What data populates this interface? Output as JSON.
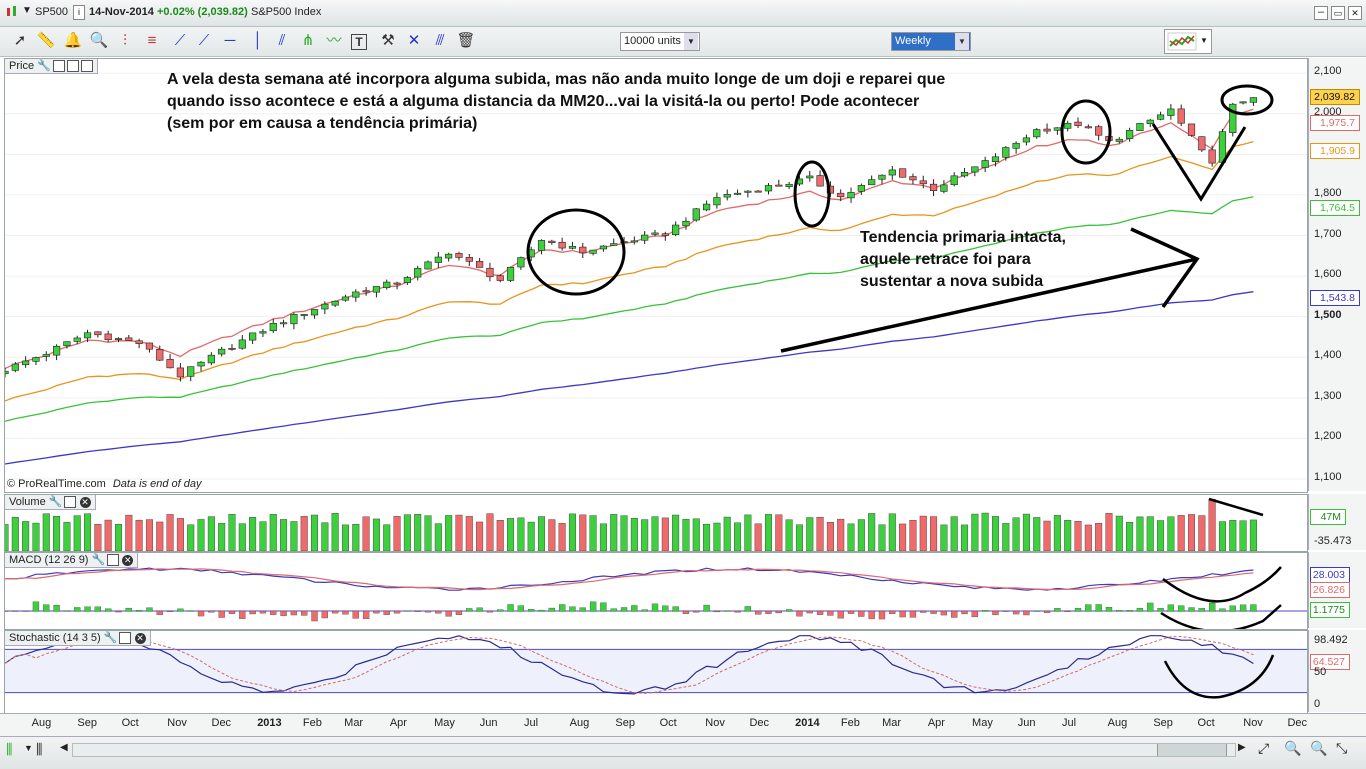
{
  "header": {
    "symbol": "SP500",
    "date": "14-Nov-2014",
    "change": "+0.02% (2,039.82)",
    "name": "S&P500 Index",
    "units": "10000 units",
    "timeframe": "Weekly"
  },
  "price_panel": {
    "title": "Price",
    "footer_source": "© ProRealTime.com",
    "footer_note": "Data is end of day",
    "y_ticks": [
      "2,100",
      "2,000",
      "1,900",
      "1,800",
      "1,700",
      "1,600",
      "1,500",
      "1,400",
      "1,300",
      "1,200",
      "1,100"
    ],
    "tags": [
      {
        "label": "2,039.82",
        "color": "#c08a00",
        "bg": "#ffd24d"
      },
      {
        "label": "1,975.7",
        "color": "#e06a6a",
        "bg": "#ffffff"
      },
      {
        "label": "1,905.9",
        "color": "#e8941e",
        "bg": "#ffffff"
      },
      {
        "label": "1,764.5",
        "color": "#39c239",
        "bg": "#ffffff"
      },
      {
        "label": "1,543.8",
        "color": "#3a3ac8",
        "bg": "#ffffff"
      }
    ]
  },
  "annotations": {
    "top_note": "A vela desta semana até incorpora alguma subida, mas não anda muito longe de um doji e reparei que quando isso acontece e está a alguma distancia da MM20...vai la visitá-la ou perto! Pode acontecer (sem por em causa a tendência primária)",
    "trend_note": "Tendencia primaria intacta, aquele retrace foi para sustentar a nova subida"
  },
  "volume_panel": {
    "title": "Volume",
    "labels": [
      "47M",
      "-35.473"
    ]
  },
  "macd_panel": {
    "title": "MACD (12 26 9)",
    "labels": [
      "28.003",
      "26.826",
      "1.1775"
    ]
  },
  "stoch_panel": {
    "title": "Stochastic (14 3 5)",
    "labels": [
      "98.492",
      "64.527",
      "50",
      "0"
    ]
  },
  "x_axis": [
    {
      "t": "Aug",
      "bold": false
    },
    {
      "t": "Sep",
      "bold": false
    },
    {
      "t": "Oct",
      "bold": false
    },
    {
      "t": "Nov",
      "bold": false
    },
    {
      "t": "Dec",
      "bold": false
    },
    {
      "t": "2013",
      "bold": true
    },
    {
      "t": "Feb",
      "bold": false
    },
    {
      "t": "Mar",
      "bold": false
    },
    {
      "t": "Apr",
      "bold": false
    },
    {
      "t": "May",
      "bold": false
    },
    {
      "t": "Jun",
      "bold": false
    },
    {
      "t": "Jul",
      "bold": false
    },
    {
      "t": "Aug",
      "bold": false
    },
    {
      "t": "Sep",
      "bold": false
    },
    {
      "t": "Oct",
      "bold": false
    },
    {
      "t": "Nov",
      "bold": false
    },
    {
      "t": "Dec",
      "bold": false
    },
    {
      "t": "2014",
      "bold": true
    },
    {
      "t": "Feb",
      "bold": false
    },
    {
      "t": "Mar",
      "bold": false
    },
    {
      "t": "Apr",
      "bold": false
    },
    {
      "t": "May",
      "bold": false
    },
    {
      "t": "Jun",
      "bold": false
    },
    {
      "t": "Jul",
      "bold": false
    },
    {
      "t": "Aug",
      "bold": false
    },
    {
      "t": "Sep",
      "bold": false
    },
    {
      "t": "Oct",
      "bold": false
    },
    {
      "t": "Nov",
      "bold": false
    },
    {
      "t": "Dec",
      "bold": false
    }
  ],
  "chart_data": {
    "type": "candlestick",
    "timeframe": "weekly",
    "ylim": [
      1100,
      2130
    ],
    "x_range": [
      "2012-07-20",
      "2014-12-19"
    ],
    "price_points": [
      [
        "2012-07-20",
        1370
      ],
      [
        "2012-08-17",
        1410
      ],
      [
        "2012-09-14",
        1460
      ],
      [
        "2012-10-19",
        1435
      ],
      [
        "2012-11-16",
        1355
      ],
      [
        "2012-12-14",
        1415
      ],
      [
        "2013-01-18",
        1480
      ],
      [
        "2013-02-15",
        1520
      ],
      [
        "2013-03-15",
        1560
      ],
      [
        "2013-04-12",
        1585
      ],
      [
        "2013-05-17",
        1660
      ],
      [
        "2013-06-21",
        1590
      ],
      [
        "2013-07-19",
        1690
      ],
      [
        "2013-08-16",
        1660
      ],
      [
        "2013-09-13",
        1685
      ],
      [
        "2013-10-11",
        1705
      ],
      [
        "2013-11-15",
        1795
      ],
      [
        "2013-12-20",
        1820
      ],
      [
        "2014-01-17",
        1840
      ],
      [
        "2014-02-07",
        1795
      ],
      [
        "2014-03-14",
        1860
      ],
      [
        "2014-04-11",
        1815
      ],
      [
        "2014-05-16",
        1880
      ],
      [
        "2014-06-20",
        1960
      ],
      [
        "2014-07-18",
        1975
      ],
      [
        "2014-08-08",
        1930
      ],
      [
        "2014-09-19",
        2010
      ],
      [
        "2014-10-10",
        1905
      ],
      [
        "2014-10-17",
        1885
      ],
      [
        "2014-10-31",
        2018
      ],
      [
        "2014-11-07",
        2032
      ],
      [
        "2014-11-14",
        2039.82
      ]
    ],
    "moving_averages": [
      {
        "color": "#e06a6a",
        "start": 1380,
        "end": 1975.7
      },
      {
        "color": "#e8941e",
        "start": 1275,
        "end": 1905.9
      },
      {
        "color": "#39c239",
        "start": 1230,
        "end": 1764.5
      },
      {
        "color": "#3a3ac8",
        "start": 1130,
        "end": 1543.8
      }
    ]
  }
}
